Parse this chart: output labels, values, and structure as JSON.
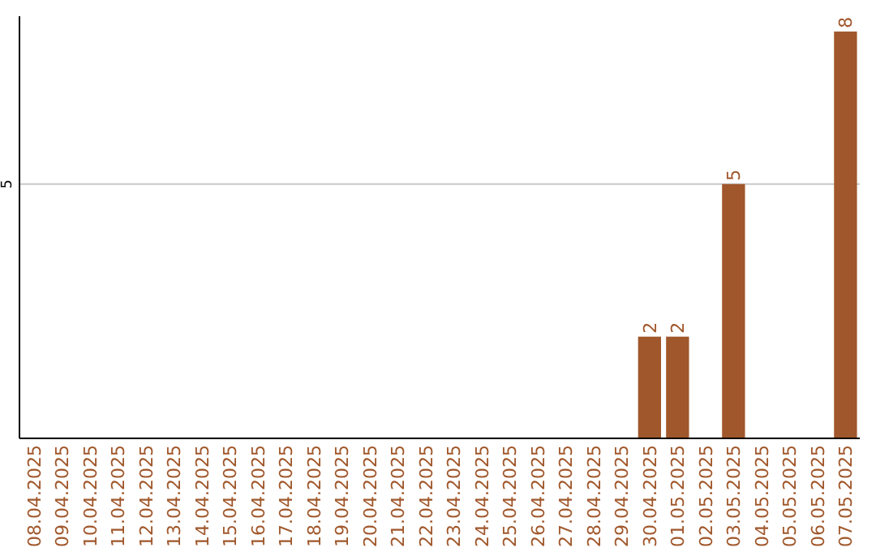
{
  "chart_data": {
    "type": "bar",
    "categories": [
      "08.04.2025",
      "09.04.2025",
      "10.04.2025",
      "11.04.2025",
      "12.04.2025",
      "13.04.2025",
      "14.04.2025",
      "15.04.2025",
      "16.04.2025",
      "17.04.2025",
      "18.04.2025",
      "19.04.2025",
      "20.04.2025",
      "21.04.2025",
      "22.04.2025",
      "23.04.2025",
      "24.04.2025",
      "25.04.2025",
      "26.04.2025",
      "27.04.2025",
      "28.04.2025",
      "29.04.2025",
      "30.04.2025",
      "01.05.2025",
      "02.05.2025",
      "03.05.2025",
      "04.05.2025",
      "05.05.2025",
      "06.05.2025",
      "07.05.2025"
    ],
    "values": [
      null,
      null,
      null,
      null,
      null,
      null,
      null,
      null,
      null,
      null,
      null,
      null,
      null,
      null,
      null,
      null,
      null,
      null,
      null,
      null,
      null,
      null,
      2,
      2,
      null,
      5,
      null,
      null,
      null,
      8
    ],
    "color": "#a0572b",
    "ylim": [
      0,
      8.3
    ],
    "yticks": [
      5
    ],
    "grid": "y",
    "data_labels": true
  }
}
